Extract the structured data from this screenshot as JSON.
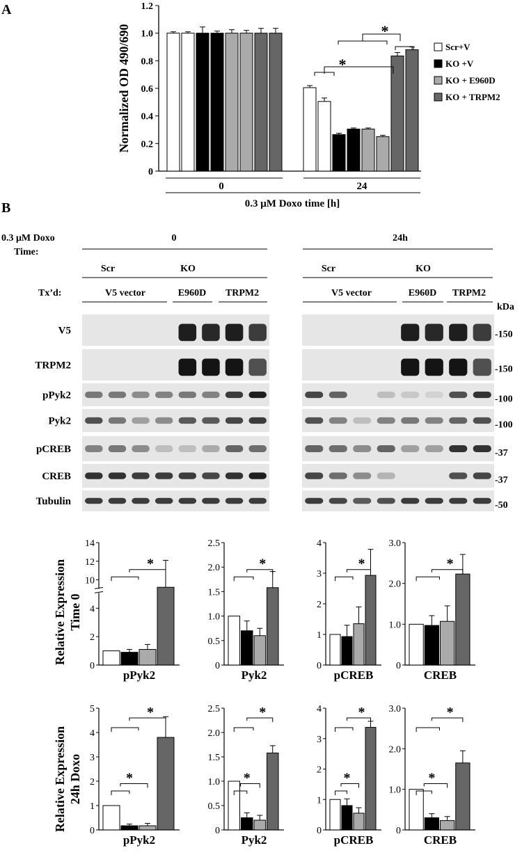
{
  "panels": {
    "A": "A",
    "B": "B"
  },
  "legend": [
    {
      "label": "Scr+V",
      "color": "#ffffff"
    },
    {
      "label": "KO +V",
      "color": "#000000"
    },
    {
      "label": "KO + E960D",
      "color": "#aaaaaa"
    },
    {
      "label": "KO + TRPM2",
      "color": "#666666"
    }
  ],
  "blot": {
    "doxo_label": [
      "0.3 μM Doxo",
      "Time:"
    ],
    "time_labels": [
      "0",
      "24h"
    ],
    "group_labels": [
      "Scr",
      "KO"
    ],
    "txd_label": "Tx’d:",
    "tx_labels": [
      "V5 vector",
      "E960D",
      "TRPM2"
    ],
    "kda_label": "kDa",
    "rows": [
      {
        "label": "V5",
        "marker": "-150"
      },
      {
        "label": "TRPM2",
        "marker": "-150"
      },
      {
        "label": "pPyk2",
        "marker": "-100"
      },
      {
        "label": "Pyk2",
        "marker": "-100"
      },
      {
        "label": "pCREB",
        "marker": "-37"
      },
      {
        "label": "CREB",
        "marker": "-37"
      },
      {
        "label": "Tubulin",
        "marker": "-50"
      }
    ],
    "band_intensity_time0": [
      [
        0,
        0,
        0,
        0,
        0.95,
        0.9,
        0.95,
        0.8
      ],
      [
        0,
        0,
        0,
        0,
        1,
        1,
        1,
        0.7
      ],
      [
        0.5,
        0.5,
        0.4,
        0.45,
        0.5,
        0.45,
        0.8,
        0.95
      ],
      [
        0.7,
        0.5,
        0.3,
        0.4,
        0.65,
        0.65,
        0.75,
        0.8
      ],
      [
        0.45,
        0.5,
        0.4,
        0.15,
        0.15,
        0.25,
        0.6,
        0.55
      ],
      [
        0.85,
        0.85,
        0.8,
        0.8,
        0.8,
        0.75,
        0.85,
        0.95
      ],
      [
        0.8,
        0.8,
        0.8,
        0.8,
        0.8,
        0.8,
        0.8,
        0.8
      ]
    ],
    "band_intensity_24h": [
      [
        0,
        0,
        0,
        0,
        0.95,
        0.9,
        0.95,
        0.8
      ],
      [
        0,
        0,
        0,
        0,
        1,
        1,
        1,
        0.7
      ],
      [
        0.75,
        0.6,
        0,
        0.15,
        0.1,
        0.05,
        0.7,
        0.85
      ],
      [
        0.7,
        0.45,
        0.15,
        0.45,
        0.5,
        0.45,
        0.6,
        0.7
      ],
      [
        0.6,
        0.55,
        0.4,
        0.6,
        0.3,
        0.3,
        0.85,
        0.85
      ],
      [
        0.75,
        0.55,
        0.4,
        0.2,
        0,
        0,
        0.7,
        0.75
      ],
      [
        0.8,
        0.75,
        0.65,
        0.7,
        0.8,
        0.8,
        0.8,
        0.8
      ]
    ]
  },
  "chart_data": [
    {
      "type": "bar",
      "panel": "A",
      "ylabel": "Normalized OD 490/690",
      "xlabel": "0.3 μM Doxo time [h]",
      "categories": [
        "0",
        "24"
      ],
      "ylim": [
        0,
        1.2
      ],
      "yticks": [
        "0",
        "0.2",
        "0.4",
        "0.6",
        "0.8",
        "1.0",
        "1.2"
      ],
      "values": [
        [
          1.0,
          1.0,
          1.0,
          1.0,
          1.0,
          1.0,
          1.0,
          1.0
        ],
        [
          0.605,
          0.505,
          0.265,
          0.305,
          0.305,
          0.25,
          0.835,
          0.88
        ]
      ],
      "errors": [
        [
          0.01,
          0.01,
          0.045,
          0.015,
          0.025,
          0.02,
          0.035,
          0.035
        ],
        [
          0.015,
          0.025,
          0.01,
          0.008,
          0.008,
          0.01,
          0.025,
          0.02
        ]
      ],
      "bar_groups": [
        0,
        0,
        1,
        1,
        2,
        2,
        3,
        3
      ],
      "significance": "*"
    },
    {
      "type": "bar",
      "panel": "B-time0-pPyk2",
      "xlabel": "pPyk2",
      "ylim": [
        0,
        14
      ],
      "axis_break": true,
      "yticks": [
        "0",
        "2",
        "4",
        "10",
        "12",
        "14"
      ],
      "values": [
        1.0,
        0.9,
        1.1,
        9.2
      ],
      "errors": [
        0,
        0.2,
        0.35,
        2.9
      ],
      "significance": "*"
    },
    {
      "type": "bar",
      "panel": "B-time0-Pyk2",
      "xlabel": "Pyk2",
      "ylim": [
        0,
        2.5
      ],
      "yticks": [
        "0",
        "0.5",
        "1.0",
        "1.5",
        "2.0",
        "2.5"
      ],
      "values": [
        1.0,
        0.7,
        0.6,
        1.58
      ],
      "errors": [
        0,
        0.2,
        0.15,
        0.33
      ],
      "significance": "*"
    },
    {
      "type": "bar",
      "panel": "B-time0-pCREB",
      "xlabel": "pCREB",
      "ylim": [
        0,
        4
      ],
      "yticks": [
        "0",
        "1",
        "2",
        "3",
        "4"
      ],
      "values": [
        1.0,
        0.93,
        1.35,
        2.93
      ],
      "errors": [
        0,
        0.37,
        0.55,
        0.85
      ],
      "significance": "*"
    },
    {
      "type": "bar",
      "panel": "B-time0-CREB",
      "xlabel": "CREB",
      "ylim": [
        0,
        3
      ],
      "yticks": [
        "0",
        "1.0",
        "2.0",
        "3.0"
      ],
      "values": [
        1.0,
        0.97,
        1.07,
        2.23
      ],
      "errors": [
        0,
        0.24,
        0.38,
        0.48
      ],
      "significance": "*"
    },
    {
      "type": "bar",
      "panel": "B-24h-pPyk2",
      "xlabel": "pPyk2",
      "ylim": [
        0,
        5
      ],
      "yticks": [
        "0",
        "1",
        "2",
        "3",
        "4",
        "5"
      ],
      "values": [
        1.0,
        0.17,
        0.17,
        3.8
      ],
      "errors": [
        0,
        0.07,
        0.1,
        0.85
      ],
      "significance": "*"
    },
    {
      "type": "bar",
      "panel": "B-24h-Pyk2",
      "xlabel": "Pyk2",
      "ylim": [
        0,
        2.5
      ],
      "yticks": [
        "0",
        "0.5",
        "1.0",
        "1.5",
        "2.0",
        "2.5"
      ],
      "values": [
        1.0,
        0.25,
        0.2,
        1.58
      ],
      "errors": [
        0,
        0.1,
        0.1,
        0.15
      ],
      "significance": "*"
    },
    {
      "type": "bar",
      "panel": "B-24h-pCREB",
      "xlabel": "pCREB",
      "ylim": [
        0,
        4
      ],
      "yticks": [
        "0",
        "1",
        "2",
        "3",
        "4"
      ],
      "values": [
        1.0,
        0.8,
        0.55,
        3.37
      ],
      "errors": [
        0,
        0.22,
        0.18,
        0.2
      ],
      "significance": "*"
    },
    {
      "type": "bar",
      "panel": "B-24h-CREB",
      "xlabel": "CREB",
      "ylim": [
        0,
        3
      ],
      "yticks": [
        "0",
        "1.0",
        "2.0",
        "3.0"
      ],
      "values": [
        1.0,
        0.3,
        0.23,
        1.65
      ],
      "errors": [
        0,
        0.1,
        0.1,
        0.3
      ],
      "significance": "*"
    }
  ],
  "relative_expression_labels": {
    "time0": [
      "Relative Expression",
      "Time 0"
    ],
    "h24": [
      "Relative Expression",
      "24h Doxo"
    ]
  }
}
